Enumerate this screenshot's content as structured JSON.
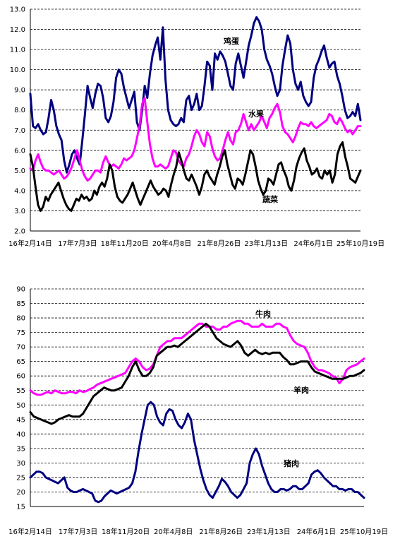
{
  "chart_data": [
    {
      "type": "line",
      "ylim": [
        2.0,
        13.0
      ],
      "yticks": [
        "2.0",
        "3.0",
        "4.0",
        "5.0",
        "6.0",
        "7.0",
        "8.0",
        "9.0",
        "10.0",
        "11.0",
        "12.0",
        "13.0"
      ],
      "xticks": [
        "16年2月14日",
        "17年7月3日",
        "18年11月20日",
        "20年4月8日",
        "21年8月26日",
        "23年1月13日",
        "24年6月1日",
        "25年10月19日"
      ],
      "grid": true,
      "series": [
        {
          "name": "鸡蛋",
          "color": "#000080",
          "values": [
            8.8,
            7.2,
            7.1,
            7.3,
            7.0,
            6.8,
            6.9,
            7.6,
            8.5,
            8.0,
            7.2,
            6.8,
            6.5,
            5.5,
            4.9,
            5.3,
            5.8,
            6.0,
            5.6,
            5.3,
            6.5,
            7.8,
            9.2,
            8.6,
            8.1,
            8.8,
            9.3,
            9.2,
            8.6,
            7.6,
            7.4,
            7.7,
            8.4,
            9.6,
            10.0,
            9.8,
            9.1,
            8.6,
            8.1,
            8.5,
            8.9,
            7.4,
            7.0,
            8.0,
            9.2,
            8.6,
            9.8,
            10.7,
            11.2,
            11.6,
            10.5,
            12.1,
            9.5,
            8.0,
            7.5,
            7.3,
            7.2,
            7.3,
            7.6,
            7.4,
            8.5,
            8.7,
            8.0,
            8.3,
            8.8,
            8.0,
            8.2,
            9.2,
            10.4,
            10.2,
            9.0,
            10.8,
            10.5,
            10.9,
            10.7,
            10.4,
            9.8,
            9.2,
            9.0,
            10.3,
            10.8,
            10.2,
            9.6,
            10.4,
            11.2,
            11.7,
            12.3,
            12.6,
            12.4,
            12.0,
            11.0,
            10.5,
            10.2,
            9.8,
            9.2,
            8.7,
            9.0,
            10.2,
            11.0,
            11.7,
            11.3,
            10.0,
            9.3,
            9.0,
            9.4,
            8.7,
            8.4,
            8.2,
            8.4,
            9.6,
            10.2,
            10.5,
            10.9,
            11.2,
            10.6,
            10.1,
            10.3,
            10.4,
            9.7,
            9.3,
            8.7,
            8.0,
            7.6,
            7.7,
            7.9,
            7.7,
            8.3,
            7.5
          ]
        },
        {
          "name": "水果",
          "color": "#ff00ff",
          "values": [
            5.1,
            5.0,
            5.5,
            5.8,
            5.4,
            5.1,
            5.0,
            5.0,
            4.9,
            4.8,
            4.9,
            5.0,
            4.8,
            4.6,
            4.7,
            4.9,
            5.2,
            5.6,
            6.0,
            5.5,
            5.0,
            4.7,
            4.5,
            4.6,
            4.8,
            5.0,
            5.0,
            4.9,
            5.4,
            5.7,
            5.4,
            5.2,
            5.3,
            5.2,
            5.1,
            5.3,
            5.6,
            5.5,
            5.6,
            5.7,
            6.0,
            6.6,
            7.2,
            8.3,
            8.6,
            7.4,
            6.3,
            5.6,
            5.2,
            5.2,
            5.3,
            5.2,
            5.1,
            5.2,
            5.6,
            6.0,
            5.9,
            5.5,
            5.3,
            5.2,
            5.6,
            5.8,
            6.2,
            6.7,
            7.0,
            6.8,
            6.4,
            6.2,
            6.9,
            6.7,
            6.1,
            5.7,
            5.5,
            5.6,
            6.0,
            6.5,
            6.9,
            6.5,
            6.3,
            6.9,
            7.0,
            7.3,
            7.8,
            7.4,
            7.0,
            7.3,
            7.0,
            7.2,
            7.4,
            7.7,
            7.4,
            7.1,
            7.6,
            7.8,
            8.1,
            8.3,
            7.9,
            7.2,
            6.9,
            6.8,
            6.6,
            6.4,
            6.7,
            7.1,
            7.4,
            7.3,
            7.3,
            7.2,
            7.4,
            7.2,
            7.1,
            7.2,
            7.3,
            7.4,
            7.5,
            7.8,
            7.7,
            7.4,
            7.3,
            7.6,
            7.4,
            7.1,
            6.9,
            7.0,
            6.8,
            7.0,
            7.2,
            7.2
          ]
        },
        {
          "name": "蔬菜",
          "color": "#000000",
          "values": [
            5.8,
            5.2,
            4.2,
            3.3,
            3.0,
            3.2,
            3.7,
            3.5,
            3.8,
            4.0,
            4.2,
            4.4,
            4.0,
            3.6,
            3.3,
            3.1,
            3.0,
            3.3,
            3.6,
            3.5,
            3.8,
            3.6,
            3.7,
            3.5,
            3.6,
            4.0,
            3.8,
            4.2,
            4.4,
            4.2,
            4.6,
            5.3,
            5.0,
            4.2,
            3.7,
            3.5,
            3.4,
            3.6,
            3.8,
            4.1,
            4.4,
            4.0,
            3.6,
            3.3,
            3.6,
            3.9,
            4.2,
            4.5,
            4.2,
            4.0,
            3.8,
            3.9,
            4.1,
            4.0,
            3.7,
            4.3,
            4.8,
            5.2,
            5.9,
            5.5,
            5.0,
            4.6,
            4.5,
            4.8,
            4.5,
            4.2,
            3.8,
            4.2,
            4.8,
            5.0,
            4.7,
            4.5,
            4.3,
            4.8,
            5.2,
            5.7,
            6.0,
            5.3,
            4.8,
            4.3,
            4.1,
            4.6,
            4.5,
            4.3,
            4.8,
            5.4,
            6.0,
            5.8,
            5.2,
            4.5,
            4.1,
            3.8,
            4.0,
            4.6,
            4.5,
            4.3,
            4.8,
            5.3,
            5.4,
            5.0,
            4.7,
            4.2,
            4.0,
            4.5,
            5.2,
            5.6,
            5.9,
            6.1,
            5.5,
            5.2,
            4.8,
            4.9,
            5.1,
            4.7,
            4.6,
            5.0,
            4.8,
            5.0,
            4.4,
            4.8,
            5.8,
            6.2,
            6.4,
            5.7,
            5.2,
            4.6,
            4.5,
            4.4,
            4.7,
            5.0
          ]
        }
      ]
    },
    {
      "type": "line",
      "ylim": [
        15,
        90
      ],
      "yticks": [
        "15",
        "20",
        "25",
        "30",
        "35",
        "40",
        "45",
        "50",
        "55",
        "60",
        "65",
        "70",
        "75",
        "80",
        "85",
        "90"
      ],
      "xticks": [
        "16年2月14日",
        "17年7月3日",
        "18年11月20日",
        "20年4月8日",
        "21年8月26日",
        "23年1月13日",
        "24年6月1日",
        "25年10月19日"
      ],
      "grid": true,
      "series": [
        {
          "name": "牛肉",
          "color": "#ff00ff",
          "values": [
            55,
            54,
            53.5,
            53.5,
            54,
            54.5,
            54,
            55,
            54.5,
            54,
            54,
            54.5,
            54.5,
            54,
            55,
            54.5,
            54.8,
            55.5,
            56,
            57,
            57.5,
            58,
            58.5,
            59,
            59.5,
            60,
            60.5,
            61,
            63,
            65,
            66,
            65,
            63,
            62,
            62.5,
            64,
            67,
            70,
            71,
            72,
            72,
            73,
            73,
            73,
            74,
            75,
            76,
            77,
            78,
            78,
            77,
            77,
            77,
            76,
            76,
            77,
            77,
            78,
            78.5,
            79,
            79,
            78,
            78,
            77,
            77,
            77,
            78,
            77,
            77,
            77,
            78,
            78,
            77,
            76.5,
            74,
            72,
            71,
            70.5,
            70,
            68,
            65,
            63,
            62,
            62,
            61.5,
            61,
            60,
            59.5,
            57.5,
            59,
            62,
            63,
            63.5,
            64,
            65,
            66
          ]
        },
        {
          "name": "羊肉",
          "color": "#000000",
          "values": [
            47.5,
            46,
            45.5,
            45,
            44.5,
            44,
            43.5,
            44,
            45,
            45.5,
            46,
            46.5,
            46,
            46,
            46,
            47,
            49,
            51,
            53,
            54,
            55,
            56,
            55.5,
            55,
            55,
            55.5,
            56,
            58,
            60,
            63,
            65,
            62,
            60,
            60,
            61,
            63,
            67,
            68,
            69,
            70,
            70,
            70.5,
            70,
            71,
            72,
            73,
            74,
            75,
            76,
            77,
            78,
            77,
            75,
            73,
            72,
            71,
            70.5,
            70,
            71,
            72,
            70.5,
            68,
            67,
            68,
            69,
            68,
            67.5,
            68,
            67.5,
            68,
            68,
            68,
            66.5,
            65.5,
            64,
            64,
            64.5,
            65,
            65,
            65,
            63,
            61.5,
            61,
            60.5,
            60,
            59.5,
            59,
            59,
            59,
            59,
            59.5,
            60,
            60,
            60.5,
            61,
            62
          ]
        },
        {
          "name": "猪肉",
          "color": "#000080",
          "values": [
            25,
            26,
            27,
            27,
            26.5,
            25,
            24.5,
            24,
            23.5,
            23,
            24,
            25,
            21.5,
            20.5,
            20,
            20,
            20.5,
            21,
            20.5,
            20,
            19.5,
            17,
            16.5,
            17,
            18.5,
            19.5,
            20.5,
            20,
            19.5,
            20,
            20.5,
            21,
            21.5,
            23,
            27,
            34,
            40,
            45,
            50,
            51,
            50,
            46,
            44,
            43,
            47,
            48.5,
            48,
            45,
            43,
            42,
            44,
            47,
            45,
            38,
            33,
            28,
            24,
            21,
            19,
            18,
            20,
            22,
            24.5,
            23.5,
            22,
            20,
            19,
            18,
            19,
            21,
            23,
            30,
            33,
            35,
            33,
            29,
            26,
            23,
            21,
            20,
            20,
            21,
            21,
            20.5,
            21,
            22,
            22,
            21,
            21,
            22,
            23,
            26,
            27,
            27.5,
            26.5,
            25,
            24,
            23,
            22,
            22,
            21,
            21,
            20.5,
            21,
            21,
            20,
            20,
            19,
            18
          ]
        }
      ]
    }
  ]
}
